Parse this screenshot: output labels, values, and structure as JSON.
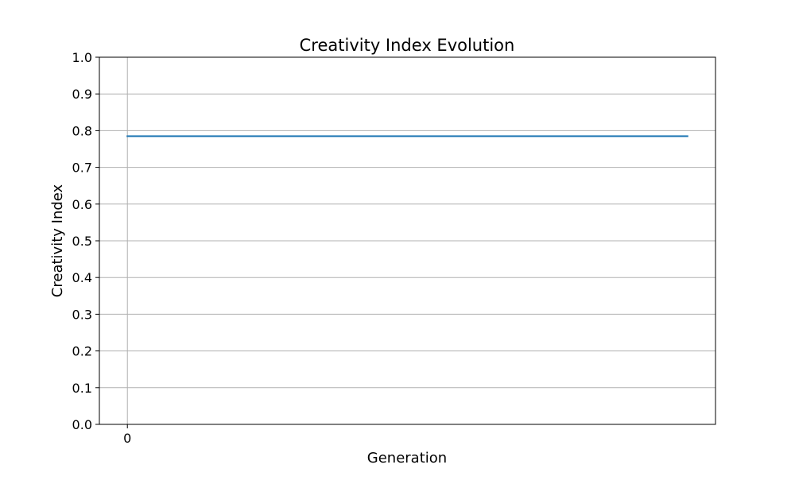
{
  "chart_data": {
    "type": "line",
    "title": "Creativity Index Evolution",
    "xlabel": "Generation",
    "ylabel": "Creativity Index",
    "x_tick_labels": [
      "0"
    ],
    "x_tick_values": [
      0
    ],
    "y_tick_labels": [
      "0.0",
      "0.1",
      "0.2",
      "0.3",
      "0.4",
      "0.5",
      "0.6",
      "0.7",
      "0.8",
      "0.9",
      "1.0"
    ],
    "y_tick_values": [
      0.0,
      0.1,
      0.2,
      0.3,
      0.4,
      0.5,
      0.6,
      0.7,
      0.8,
      0.9,
      1.0
    ],
    "xlim": [
      -0.05,
      1.05
    ],
    "ylim": [
      0.0,
      1.0
    ],
    "grid": true,
    "legend": "none",
    "series": [
      {
        "color": "#1f77b4",
        "x": [
          0,
          1
        ],
        "y": [
          0.785,
          0.785
        ]
      }
    ]
  }
}
